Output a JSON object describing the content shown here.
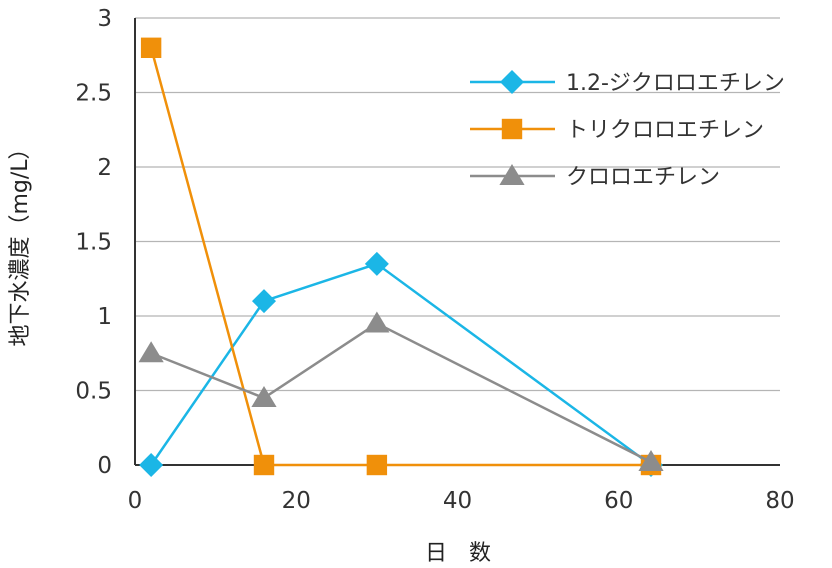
{
  "chart_data": {
    "type": "line",
    "title": "",
    "xlabel": "日　数",
    "ylabel": "地下水濃度（mg/L）",
    "xlim": [
      0,
      80
    ],
    "ylim": [
      0,
      3
    ],
    "xticks": [
      "0",
      "20",
      "40",
      "60",
      "80"
    ],
    "yticks": [
      "0",
      "0.5",
      "1",
      "1.5",
      "2",
      "2.5",
      "3"
    ],
    "grid": "horizontal",
    "legend_position": "top-right",
    "series": [
      {
        "name": "1.2-ジクロロエチレン",
        "color": "#1bb6e6",
        "marker": "diamond",
        "x": [
          2,
          16,
          30,
          64
        ],
        "y": [
          0,
          1.1,
          1.35,
          0
        ]
      },
      {
        "name": "トリクロロエチレン",
        "color": "#f0900a",
        "marker": "square",
        "x": [
          2,
          16,
          30,
          64
        ],
        "y": [
          2.8,
          0,
          0,
          0
        ]
      },
      {
        "name": "クロロエチレン",
        "color": "#8c8c8c",
        "marker": "triangle",
        "x": [
          2,
          16,
          30,
          64
        ],
        "y": [
          0.75,
          0.45,
          0.95,
          0.02
        ]
      }
    ]
  }
}
